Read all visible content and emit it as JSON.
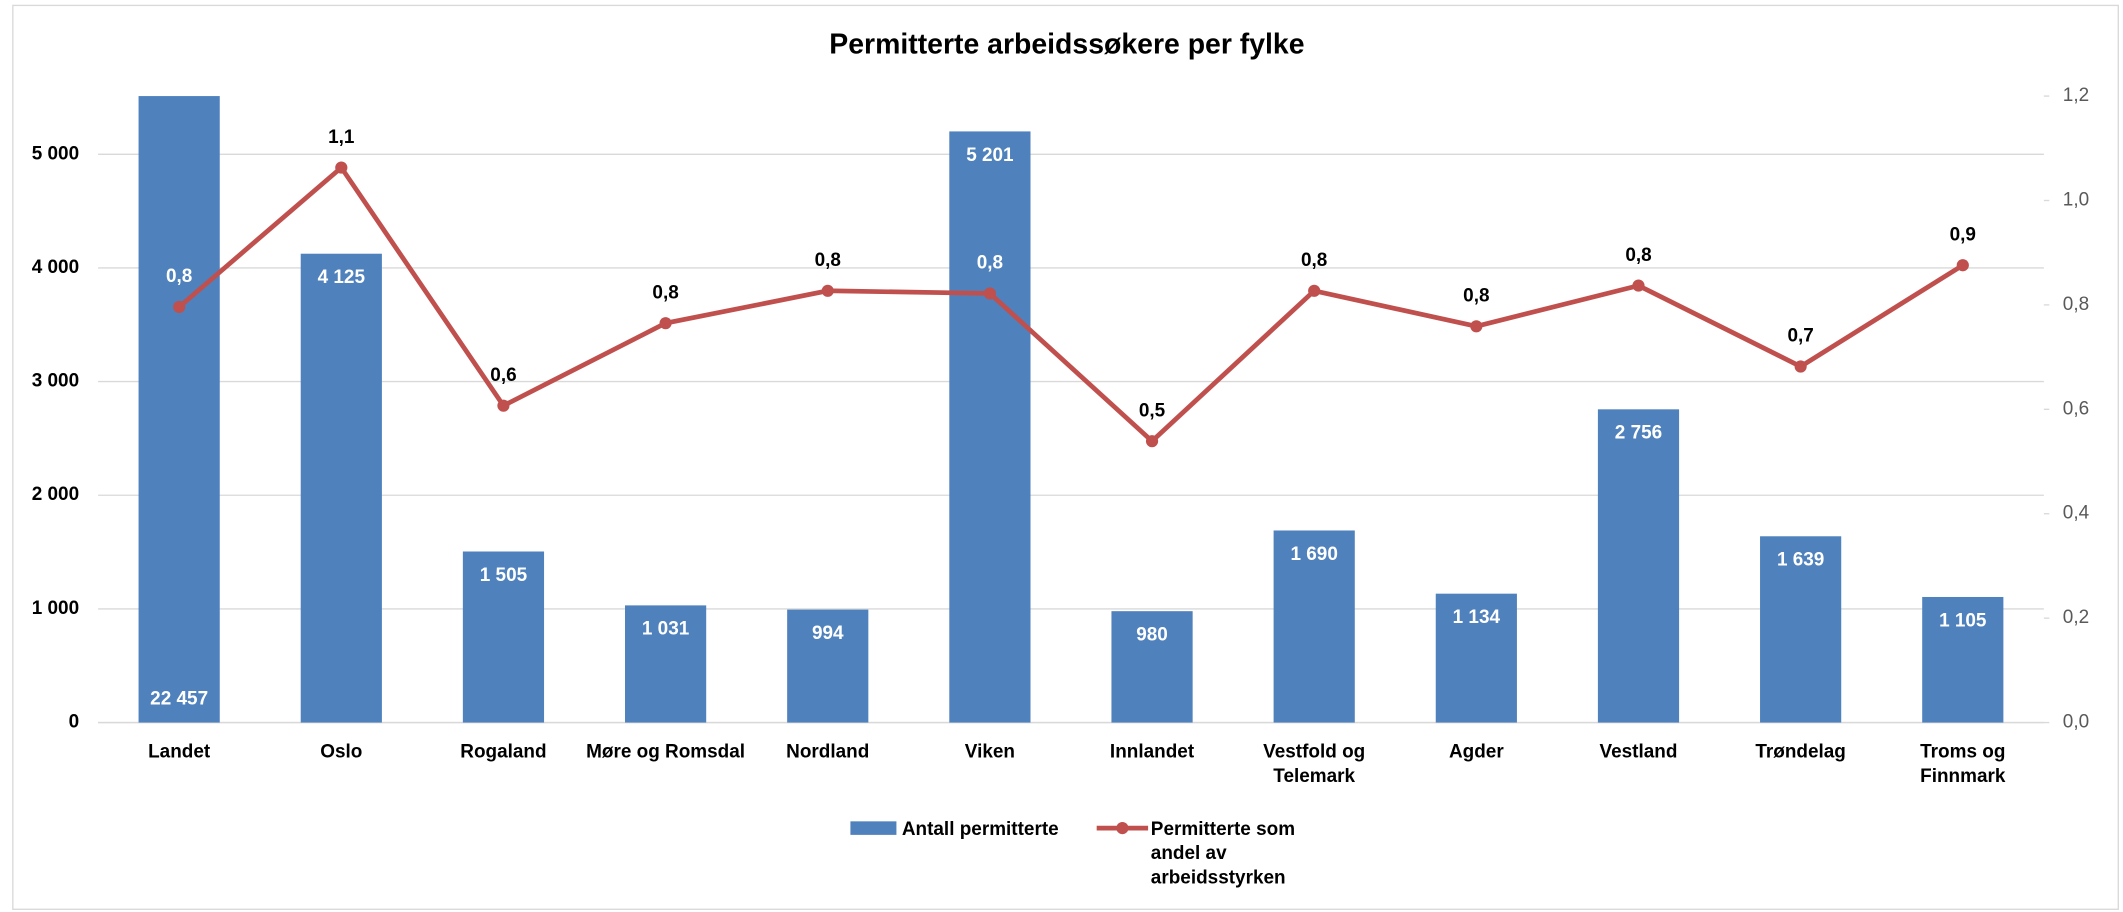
{
  "chart_data": {
    "type": "combo",
    "title": "Permitterte arbeidssøkere per fylke",
    "categories": [
      "Landet",
      "Oslo",
      "Rogaland",
      "Møre og Romsdal",
      "Nordland",
      "Viken",
      "Innlandet",
      "Vestfold og Telemark",
      "Agder",
      "Vestland",
      "Trøndelag",
      "Troms og Finnmark"
    ],
    "series": [
      {
        "name": "Antall permitterte",
        "type": "bar",
        "axis": "y",
        "color": "#4f81bd",
        "values": [
          22457,
          4125,
          1505,
          1031,
          994,
          5201,
          980,
          1690,
          1134,
          2756,
          1639,
          1105
        ],
        "value_labels": [
          "22 457",
          "4 125",
          "1 505",
          "1 031",
          "994",
          "5 201",
          "980",
          "1 690",
          "1 134",
          "2 756",
          "1 639",
          "1 105"
        ]
      },
      {
        "name": "Permitterte som andel av arbeidsstyrken",
        "type": "line",
        "axis": "y2",
        "color": "#c0504d",
        "values": [
          0.796,
          1.063,
          0.607,
          0.765,
          0.827,
          0.822,
          0.539,
          0.827,
          0.759,
          0.837,
          0.682,
          0.876
        ],
        "value_labels": [
          "0,8",
          "1,1",
          "0,6",
          "0,8",
          "0,8",
          "0,8",
          "0,5",
          "0,8",
          "0,8",
          "0,8",
          "0,7",
          "0,9"
        ]
      }
    ],
    "ylim": [
      0,
      5512
    ],
    "yticks": [
      0,
      {
        "value": 1000,
        "label": "1 000"
      },
      {
        "value": 2000,
        "label": "2 000"
      },
      {
        "value": 3000,
        "label": "3 000"
      },
      {
        "value": 4000,
        "label": "4 000"
      },
      {
        "value": 5000,
        "label": "5 000"
      }
    ],
    "y2lim": [
      0,
      1.2
    ],
    "y2ticks": [
      {
        "value": 0,
        "label": "0,0"
      },
      {
        "value": 0.2,
        "label": "0,2"
      },
      {
        "value": 0.4,
        "label": "0,4"
      },
      {
        "value": 0.6,
        "label": "0,6"
      },
      {
        "value": 0.8,
        "label": "0,8"
      },
      {
        "value": 1.0,
        "label": "1,0"
      },
      {
        "value": 1.2,
        "label": "1,2"
      }
    ],
    "grid": true,
    "legend": "bottom"
  }
}
